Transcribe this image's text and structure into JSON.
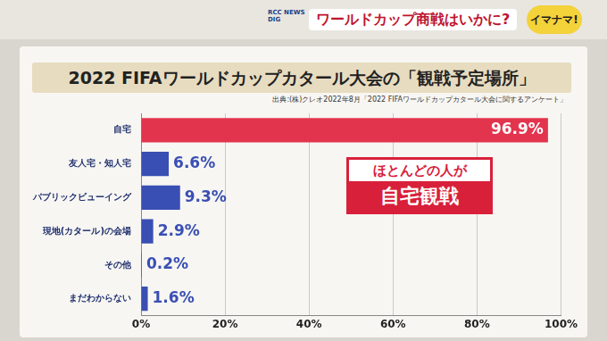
{
  "header": {
    "program": "RCC NEWS DIG",
    "topic": "ワールドカップ商戦はいかに?",
    "show": "イマナマ!"
  },
  "chart_data": {
    "type": "bar",
    "title": "2022 FIFAワールドカップカタール大会の「観戦予定場所」",
    "subtitle": "出典:(株)クレオ2022年8月「2022 FIFAワールドカップカタール大会に関するアンケート」",
    "annotations": [
      "ほとんどの人が",
      "自宅観戦"
    ],
    "orientation": "horizontal",
    "categories": [
      "自宅",
      "友人宅・知人宅",
      "パブリックビューイング",
      "現地(カタール)の会場",
      "その他",
      "まだわからない"
    ],
    "values": [
      96.9,
      6.6,
      9.3,
      2.9,
      0.2,
      1.6
    ],
    "value_labels": [
      "96.9%",
      "6.6%",
      "9.3%",
      "2.9%",
      "0.2%",
      "1.6%"
    ],
    "colors": [
      "#e3344e",
      "#3a4fb3",
      "#3a4fb3",
      "#3a4fb3",
      "#3a4fb3",
      "#3a4fb3"
    ],
    "data_labels": true,
    "grid": true,
    "xlim": [
      0,
      100
    ],
    "xticks": [
      {
        "value": 0,
        "label": "0%"
      },
      {
        "value": 20,
        "label": "20%"
      },
      {
        "value": 40,
        "label": "40%"
      },
      {
        "value": 60,
        "label": "60%"
      },
      {
        "value": 80,
        "label": "80%"
      },
      {
        "value": 100,
        "label": "100%"
      }
    ]
  }
}
